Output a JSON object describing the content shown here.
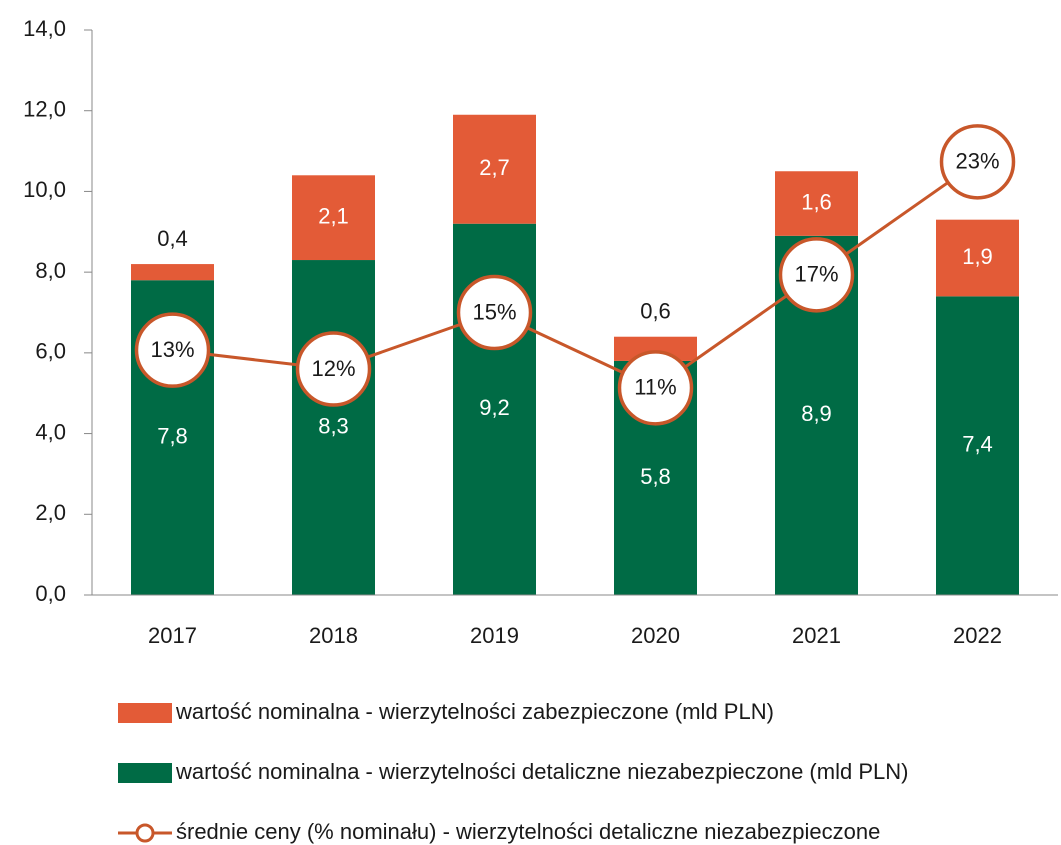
{
  "chart_data": {
    "type": "bar",
    "stacked": true,
    "categories": [
      "2017",
      "2018",
      "2019",
      "2020",
      "2021",
      "2022"
    ],
    "series": [
      {
        "name": "wartość nominalna - wierzytelności zabezpieczone (mld PLN)",
        "color": "#e35b37",
        "values": [
          0.4,
          2.1,
          2.7,
          0.6,
          1.6,
          1.9
        ],
        "value_labels": [
          "0,4",
          "2,1",
          "2,7",
          "0,6",
          "1,6",
          "1,9"
        ]
      },
      {
        "name": "wartość nominalna - wierzytelności detaliczne niezabezpieczone (mld PLN)",
        "color": "#006b45",
        "values": [
          7.8,
          8.3,
          9.2,
          5.8,
          8.9,
          7.4
        ],
        "value_labels": [
          "7,8",
          "8,3",
          "9,2",
          "5,8",
          "8,9",
          "7,4"
        ]
      },
      {
        "name": "średnie ceny (% nominału) - wierzytelności detaliczne niezabezpieczone",
        "color": "#c8572a",
        "type": "line",
        "axis": "y2",
        "values": [
          13,
          12,
          15,
          11,
          17,
          23
        ],
        "value_labels": [
          "13%",
          "12%",
          "15%",
          "11%",
          "17%",
          "23%"
        ]
      }
    ],
    "ylim": [
      0,
      14
    ],
    "yticks": [
      {
        "value": 0,
        "label": "0,0"
      },
      {
        "value": 2,
        "label": "2,0"
      },
      {
        "value": 4,
        "label": "4,0"
      },
      {
        "value": 6,
        "label": "6,0"
      },
      {
        "value": 8,
        "label": "8,0"
      },
      {
        "value": 10,
        "label": "10,0"
      },
      {
        "value": 12,
        "label": "12,0"
      },
      {
        "value": 14,
        "label": "14,0"
      }
    ],
    "y2lim": [
      0,
      30
    ],
    "grid": false,
    "legend": "bottom"
  }
}
